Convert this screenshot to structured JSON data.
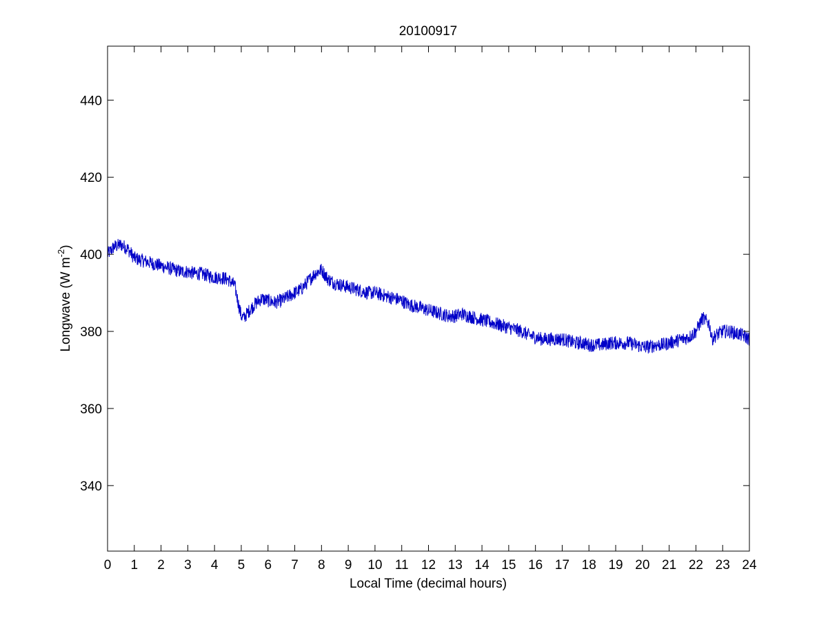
{
  "chart_data": {
    "type": "line",
    "title": "20100917",
    "xlabel": "Local Time (decimal hours)",
    "ylabel": {
      "text": "Longwave (W m",
      "superscript": "-2",
      "suffix": ")"
    },
    "xlim": [
      0,
      24
    ],
    "ylim": [
      323,
      454
    ],
    "x_ticks": [
      "0",
      "1",
      "2",
      "3",
      "4",
      "5",
      "6",
      "7",
      "8",
      "9",
      "10",
      "11",
      "12",
      "13",
      "14",
      "15",
      "16",
      "17",
      "18",
      "19",
      "20",
      "21",
      "22",
      "23",
      "24"
    ],
    "y_ticks": [
      "340",
      "360",
      "380",
      "400",
      "420",
      "440"
    ],
    "grid": false,
    "line_color": "#0000c8",
    "series": [
      {
        "x": [
          0,
          0.25,
          0.5,
          0.75,
          1.0,
          1.25,
          1.5,
          1.75,
          2.0,
          2.25,
          2.5,
          2.75,
          3.0,
          3.25,
          3.5,
          3.75,
          4.0,
          4.25,
          4.5,
          4.75,
          4.9,
          5.0,
          5.1,
          5.25,
          5.5,
          5.75,
          6.0,
          6.25,
          6.5,
          6.75,
          7.0,
          7.25,
          7.5,
          7.75,
          8.0,
          8.25,
          8.5,
          8.75,
          9.0,
          9.25,
          9.5,
          9.75,
          10.0,
          10.25,
          10.5,
          10.75,
          11.0,
          11.25,
          11.5,
          11.75,
          12.0,
          12.25,
          12.5,
          12.75,
          13.0,
          13.25,
          13.5,
          13.75,
          14.0,
          14.25,
          14.5,
          14.75,
          15.0,
          15.25,
          15.5,
          15.75,
          16.0,
          16.25,
          16.5,
          16.75,
          17.0,
          17.25,
          17.5,
          17.75,
          18.0,
          18.25,
          18.5,
          18.75,
          19.0,
          19.25,
          19.5,
          19.75,
          20.0,
          20.25,
          20.5,
          20.75,
          21.0,
          21.25,
          21.5,
          21.75,
          22.0,
          22.25,
          22.5,
          22.6,
          22.75,
          23.0,
          23.25,
          23.5,
          23.75,
          24.0
        ],
        "y": [
          400,
          402,
          402.5,
          401.5,
          399,
          398.5,
          398,
          397.5,
          397,
          396.5,
          396,
          395.5,
          395.5,
          395,
          395,
          394.5,
          394,
          394,
          393.5,
          392,
          387,
          384,
          383.5,
          385,
          387,
          388.5,
          388,
          387.5,
          388,
          389,
          390,
          391,
          393,
          395,
          396,
          393.5,
          392.5,
          392,
          391.5,
          391,
          390.5,
          390,
          390,
          389.5,
          389,
          388.5,
          388,
          387,
          386.5,
          386,
          385.5,
          385,
          384.5,
          384,
          384,
          384.5,
          384,
          383.5,
          383,
          382.5,
          382,
          381.5,
          381,
          380.5,
          380,
          379,
          378.5,
          378,
          378,
          378,
          378,
          377.5,
          377,
          377,
          376.5,
          376.5,
          376.5,
          377,
          377,
          377,
          377,
          376.5,
          376,
          376,
          376.5,
          376.5,
          377,
          377.5,
          378,
          378.5,
          380,
          383.5,
          382,
          378,
          379,
          380,
          380,
          379.5,
          379,
          378
        ]
      }
    ]
  }
}
